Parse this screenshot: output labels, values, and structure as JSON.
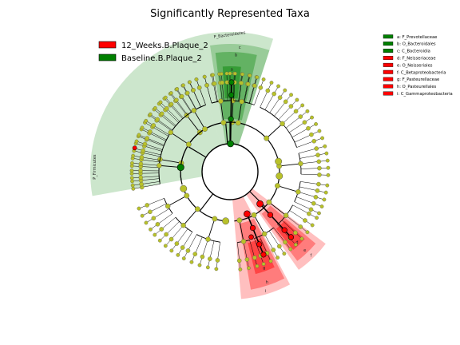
{
  "chart_data": {
    "type": "cladogram",
    "title": "Significantly Represented Taxa",
    "legend_placement": "top-left",
    "classes": [
      {
        "name": "12_Weeks.B.Plaque_2",
        "color": "#ff0000"
      },
      {
        "name": "Baseline.B.Plaque_2",
        "color": "#008000"
      }
    ],
    "phylum_sectors": [
      {
        "label": "P_Bacteroidetes",
        "color": "#008000",
        "start_deg": 252,
        "end_deg": 288
      },
      {
        "label": "P_Firmicutes",
        "color": "#008000",
        "start_deg": 170,
        "end_deg": 252
      }
    ],
    "highlighted_taxa": [
      {
        "key": "a",
        "taxon": "F_Prevotellaceae",
        "class": "Baseline.B.Plaque_2",
        "color": "#008000"
      },
      {
        "key": "b",
        "taxon": "O_Bacteroidales",
        "class": "Baseline.B.Plaque_2",
        "color": "#008000"
      },
      {
        "key": "c",
        "taxon": "C_Bacteroidia",
        "class": "Baseline.B.Plaque_2",
        "color": "#008000"
      },
      {
        "key": "d",
        "taxon": "F_Neisseriaceae",
        "class": "12_Weeks.B.Plaque_2",
        "color": "#ff0000"
      },
      {
        "key": "e",
        "taxon": "O_Neisseriales",
        "class": "12_Weeks.B.Plaque_2",
        "color": "#ff0000"
      },
      {
        "key": "f",
        "taxon": "C_Betaproteobacteria",
        "class": "12_Weeks.B.Plaque_2",
        "color": "#ff0000"
      },
      {
        "key": "g",
        "taxon": "F_Pasteurellaceae",
        "class": "12_Weeks.B.Plaque_2",
        "color": "#ff0000"
      },
      {
        "key": "h",
        "taxon": "O_Pasteurellales",
        "class": "12_Weeks.B.Plaque_2",
        "color": "#ff0000"
      },
      {
        "key": "i",
        "taxon": "C_Gammaproteobacteria",
        "class": "12_Weeks.B.Plaque_2",
        "color": "#ff0000"
      }
    ],
    "key_entries": [
      {
        "text": "a: F_Prevotellaceae",
        "color": "#008000"
      },
      {
        "text": "b: O_Bacteroidales",
        "color": "#008000"
      },
      {
        "text": "c: C_Bacteroidia",
        "color": "#008000"
      },
      {
        "text": "d: F_Neisseriaceae",
        "color": "#ff0000"
      },
      {
        "text": "e: O_Neisseriales",
        "color": "#ff0000"
      },
      {
        "text": "f: C_Betaproteobacteria",
        "color": "#ff0000"
      },
      {
        "text": "g: F_Pasteurellaceae",
        "color": "#ff0000"
      },
      {
        "text": "h: O_Pasteurellales",
        "color": "#ff0000"
      },
      {
        "text": "i: C_Gammaproteobacteria",
        "color": "#ff0000"
      }
    ],
    "neutral_node_color": "#b8c12a"
  }
}
